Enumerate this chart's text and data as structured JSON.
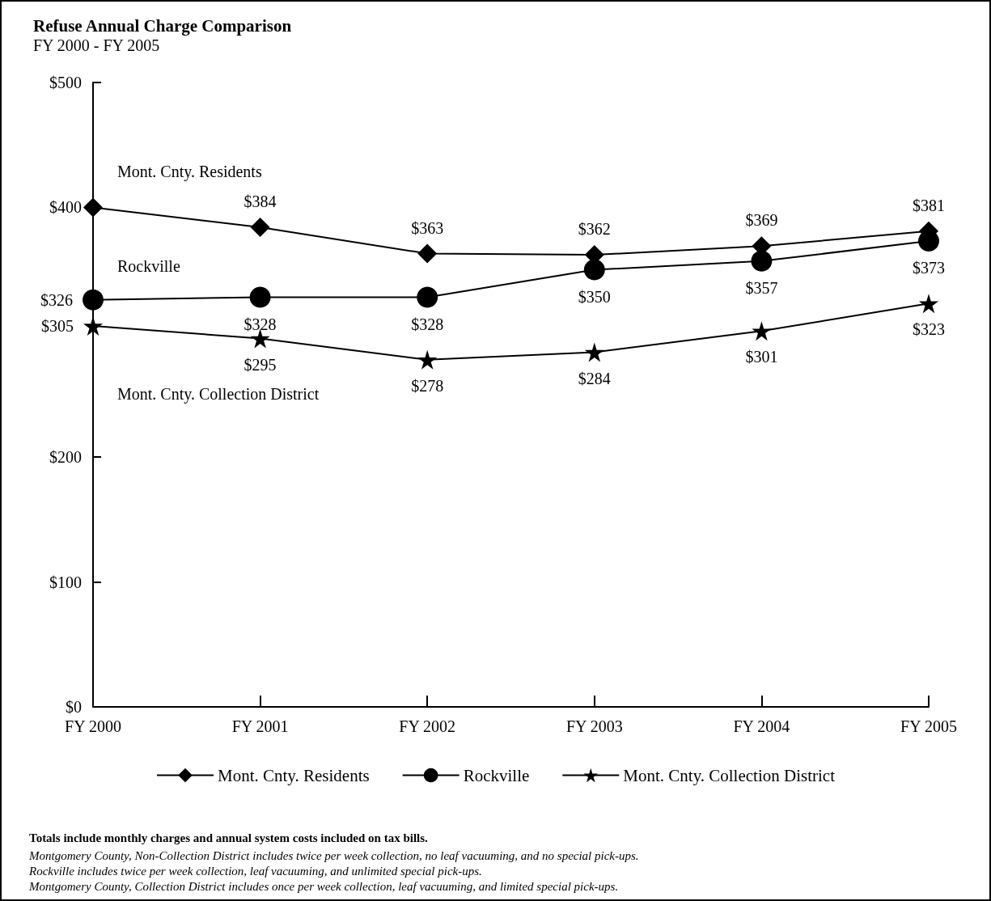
{
  "chart_data": {
    "type": "line",
    "title": "Refuse Annual Charge Comparison",
    "subtitle": "FY 2000 - FY 2005",
    "categories": [
      "FY 2000",
      "FY 2001",
      "FY 2002",
      "FY 2003",
      "FY 2004",
      "FY 2005"
    ],
    "ylim": [
      0,
      500
    ],
    "yticks": [
      {
        "value": 0,
        "label": "$0"
      },
      {
        "value": 100,
        "label": "$100"
      },
      {
        "value": 200,
        "label": "$200"
      },
      {
        "value": 400,
        "label": "$400"
      },
      {
        "value": 500,
        "label": "$500"
      }
    ],
    "series": [
      {
        "name": "Mont. Cnty. Residents",
        "color": "#000000",
        "marker": "diamond",
        "values": [
          400,
          384,
          363,
          362,
          369,
          381
        ],
        "value_labels": [
          null,
          "$384",
          "$363",
          "$362",
          "$369",
          "$381"
        ]
      },
      {
        "name": "Rockville",
        "color": "#000000",
        "marker": "circle",
        "values": [
          326,
          328,
          328,
          350,
          357,
          373
        ],
        "value_labels": [
          "$326",
          "$328",
          "$328",
          "$350",
          "$357",
          "$373"
        ]
      },
      {
        "name": "Mont. Cnty. Collection District",
        "color": "#000000",
        "marker": "star",
        "values": [
          305,
          295,
          278,
          284,
          301,
          323
        ],
        "value_labels": [
          "$305",
          "$295",
          "$278",
          "$284",
          "$301",
          "$323"
        ]
      }
    ],
    "legend": "bottom",
    "grid": false,
    "line_style": "solid",
    "annotations": [
      "Mont. Cnty. Residents",
      "Rockville",
      "Mont. Cnty. Collection District",
      "Totals include monthly charges and annual system costs included on tax bills.",
      "Montgomery County, Non-Collection District includes twice per week collection, no leaf vacuuming, and no special pick-ups.",
      "Rockville includes twice per week collection, leaf vacuuming, and unlimited special pick-ups.",
      "Montgomery County, Collection District includes once per week collection, leaf vacuuming, and limited special pick-ups."
    ]
  }
}
